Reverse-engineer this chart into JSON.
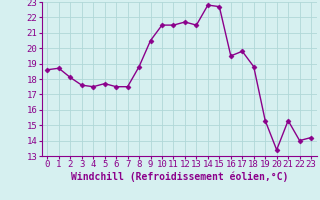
{
  "x": [
    0,
    1,
    2,
    3,
    4,
    5,
    6,
    7,
    8,
    9,
    10,
    11,
    12,
    13,
    14,
    15,
    16,
    17,
    18,
    19,
    20,
    21,
    22,
    23
  ],
  "y": [
    18.6,
    18.7,
    18.1,
    17.6,
    17.5,
    17.7,
    17.5,
    17.5,
    18.8,
    20.5,
    21.5,
    21.5,
    21.7,
    21.5,
    22.8,
    22.7,
    19.5,
    19.8,
    18.8,
    15.3,
    13.4,
    15.3,
    14.0,
    14.2
  ],
  "line_color": "#8B008B",
  "marker": "D",
  "marker_size": 2.5,
  "linewidth": 1.0,
  "bg_color": "#d6f0f0",
  "grid_color": "#b0d8d8",
  "xlabel": "Windchill (Refroidissement éolien,°C)",
  "xlabel_fontsize": 7,
  "tick_fontsize": 6.5,
  "ylim": [
    13,
    23
  ],
  "yticks": [
    13,
    14,
    15,
    16,
    17,
    18,
    19,
    20,
    21,
    22,
    23
  ],
  "xticks": [
    0,
    1,
    2,
    3,
    4,
    5,
    6,
    7,
    8,
    9,
    10,
    11,
    12,
    13,
    14,
    15,
    16,
    17,
    18,
    19,
    20,
    21,
    22,
    23
  ]
}
